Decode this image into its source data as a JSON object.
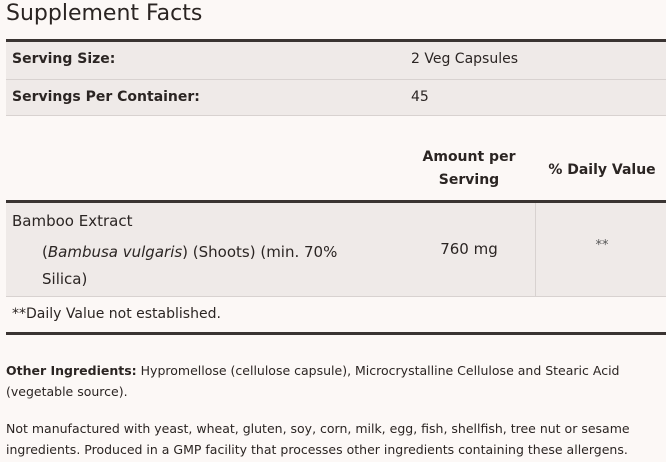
{
  "title": "Supplement Facts",
  "serving_size": {
    "label": "Serving Size:",
    "value": "2 Veg Capsules"
  },
  "servings_per_container": {
    "label": "Servings Per Container:",
    "value": "45"
  },
  "columns": {
    "amount": "Amount per Serving",
    "daily_value": "% Daily Value"
  },
  "ingredients": [
    {
      "name": "Bamboo Extract",
      "latin": "Bambusa vulgaris",
      "detail": ") (Shoots) (min. 70% Silica)",
      "amount": "760 mg",
      "daily_value": "**"
    }
  ],
  "footnote": "**Daily Value not established.",
  "other_ingredients": {
    "label": "Other Ingredients:",
    "text": " Hypromellose (cellulose capsule), Microcrystalline Cellulose and Stearic Acid (vegetable source)."
  },
  "allergen_statement": "Not manufactured with yeast, wheat, gluten, soy, corn, milk, egg, fish, shellfish, tree nut or sesame ingredients. Produced in a GMP facility that processes other ingredients containing these allergens."
}
